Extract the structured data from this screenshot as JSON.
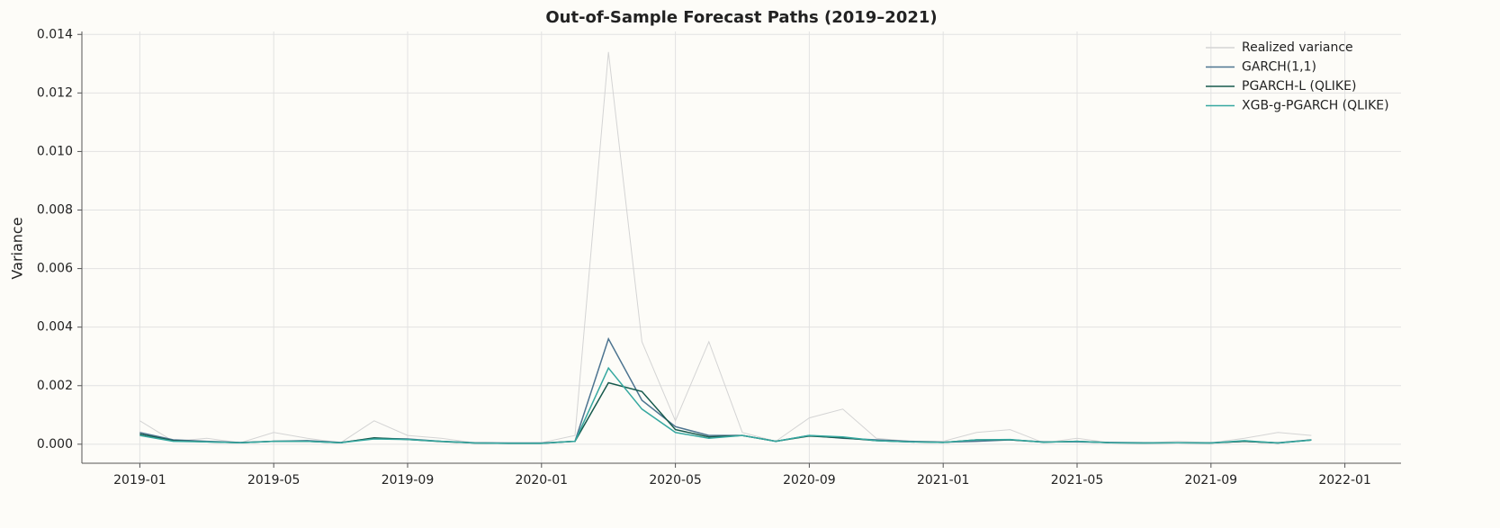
{
  "chart_data": {
    "type": "line",
    "title": "Out-of-Sample Forecast Paths (2019–2021)",
    "y_label": "Variance",
    "x": [
      "2019-01",
      "2019-02",
      "2019-03",
      "2019-04",
      "2019-05",
      "2019-06",
      "2019-07",
      "2019-08",
      "2019-09",
      "2019-10",
      "2019-11",
      "2019-12",
      "2020-01",
      "2020-02",
      "2020-03",
      "2020-04",
      "2020-05",
      "2020-06",
      "2020-07",
      "2020-08",
      "2020-09",
      "2020-10",
      "2020-11",
      "2020-12",
      "2021-01",
      "2021-02",
      "2021-03",
      "2021-04",
      "2021-05",
      "2021-06",
      "2021-07",
      "2021-08",
      "2021-09",
      "2021-10",
      "2021-11",
      "2021-12"
    ],
    "series": [
      {
        "name": "Realized variance",
        "color": "#d4d4d4",
        "values": [
          0.0008,
          0.0001,
          0.0002,
          5e-05,
          0.0004,
          0.0002,
          5e-05,
          0.0008,
          0.0003,
          0.0002,
          5e-05,
          3e-05,
          5e-05,
          0.0003,
          0.0134,
          0.0035,
          0.0008,
          0.0035,
          0.0004,
          0.0001,
          0.0009,
          0.0012,
          0.0002,
          0.0001,
          0.0001,
          0.0004,
          0.0005,
          5e-05,
          0.0002,
          5e-05,
          4e-05,
          0.0001,
          5e-05,
          0.0002,
          0.0004,
          0.0003
        ]
      },
      {
        "name": "GARCH(1,1)",
        "color": "#4d7490",
        "values": [
          0.0004,
          0.00015,
          0.0001,
          6e-05,
          0.0001,
          0.00012,
          6e-05,
          0.0002,
          0.00018,
          0.0001,
          5e-05,
          4e-05,
          4e-05,
          0.0001,
          0.0036,
          0.0015,
          0.0006,
          0.0003,
          0.0003,
          0.0001,
          0.0003,
          0.0002,
          0.00015,
          0.0001,
          7e-05,
          0.0001,
          0.00015,
          8e-05,
          8e-05,
          6e-05,
          5e-05,
          5e-05,
          5e-05,
          0.0001,
          5e-05,
          0.00015
        ]
      },
      {
        "name": "PGARCH-L (QLIKE)",
        "color": "#16594c",
        "values": [
          0.00035,
          0.00012,
          8e-05,
          5e-05,
          0.0001,
          0.0001,
          5e-05,
          0.00022,
          0.00016,
          9e-05,
          4e-05,
          3e-05,
          3e-05,
          0.0001,
          0.0021,
          0.0018,
          0.0005,
          0.00025,
          0.0003,
          0.0001,
          0.00028,
          0.00022,
          0.00012,
          8e-05,
          6e-05,
          0.00015,
          0.00015,
          7e-05,
          0.0001,
          5e-05,
          4e-05,
          5e-05,
          4e-05,
          0.0001,
          4e-05,
          0.00014
        ]
      },
      {
        "name": "XGB-g-PGARCH (QLIKE)",
        "color": "#36a8a0",
        "values": [
          0.0003,
          0.0001,
          8e-05,
          5e-05,
          0.0001,
          0.0001,
          5e-05,
          0.00018,
          0.00016,
          0.0001,
          4e-05,
          3e-05,
          3e-05,
          0.0001,
          0.0026,
          0.0012,
          0.0004,
          0.0002,
          0.0003,
          0.0001,
          0.0003,
          0.00025,
          0.00012,
          8e-05,
          6e-05,
          0.00015,
          0.00016,
          7e-05,
          0.0001,
          5e-05,
          4e-05,
          5e-05,
          4e-05,
          0.00012,
          4e-05,
          0.00014
        ]
      }
    ],
    "xlim": [
      "2018-11",
      "2022-03"
    ],
    "xticks": [
      "2019-01",
      "2019-05",
      "2019-09",
      "2020-01",
      "2020-05",
      "2020-09",
      "2021-01",
      "2021-05",
      "2021-09",
      "2022-01"
    ],
    "ylim": [
      -0.00065,
      0.0141
    ],
    "yticks": [
      {
        "value": 0,
        "label": "0.000"
      },
      0.002,
      0.004,
      0.006,
      0.008,
      {
        "value": 0.01,
        "label": "0.010"
      },
      0.012,
      0.014
    ],
    "grid": true,
    "legend": "upper right"
  }
}
